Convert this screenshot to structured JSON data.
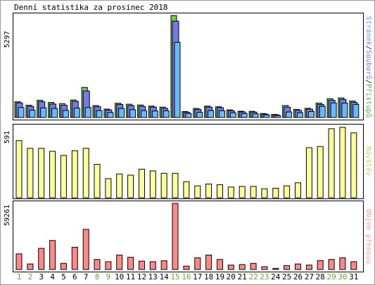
{
  "chart_data": {
    "type": "bar",
    "title": "Denní statistika za prosinec 2018",
    "days": [
      "1",
      "2",
      "3",
      "4",
      "5",
      "6",
      "7",
      "8",
      "9",
      "10",
      "11",
      "12",
      "13",
      "14",
      "15",
      "16",
      "17",
      "18",
      "19",
      "20",
      "21",
      "22",
      "23",
      "24",
      "25",
      "26",
      "27",
      "28",
      "29",
      "30",
      "31"
    ],
    "weekend_days": [
      "1",
      "2",
      "8",
      "9",
      "15",
      "16",
      "22",
      "23",
      "29",
      "30"
    ],
    "panels": [
      {
        "id": "traffic",
        "max_label": "5297",
        "ymax": 5297,
        "series_label_parts": [
          "Stránek",
          "Souborů",
          "Přístupů"
        ],
        "series_colors": [
          "#6699ee",
          "#7777ee",
          "#66aa55"
        ],
        "series": [
          {
            "name": "Přístupů",
            "color": "#77cc44",
            "values": [
              820,
              640,
              900,
              780,
              720,
              910,
              1560,
              620,
              440,
              740,
              690,
              650,
              590,
              540,
              5297,
              310,
              470,
              590,
              560,
              400,
              330,
              320,
              210,
              160,
              620,
              420,
              480,
              750,
              980,
              1020,
              860
            ]
          },
          {
            "name": "Souborů",
            "color": "#7777ee",
            "values": [
              760,
              580,
              820,
              700,
              640,
              840,
              1380,
              560,
              390,
              680,
              620,
              580,
              540,
              480,
              5000,
              270,
              420,
              540,
              510,
              350,
              290,
              280,
              180,
              140,
              540,
              370,
              430,
              680,
              900,
              940,
              790
            ]
          },
          {
            "name": "Stránek",
            "color": "#66bbff",
            "values": [
              520,
              380,
              500,
              470,
              370,
              490,
              520,
              360,
              260,
              470,
              410,
              360,
              340,
              350,
              3900,
              200,
              270,
              360,
              350,
              250,
              200,
              190,
              130,
              100,
              290,
              250,
              310,
              580,
              760,
              750,
              680
            ]
          }
        ]
      },
      {
        "id": "visits",
        "max_label": "591",
        "ymax": 591,
        "series_label_parts": [
          "Návštěv"
        ],
        "series_colors": [
          "#cccc66"
        ],
        "series": [
          {
            "name": "Návštěv",
            "color": "#ffff99",
            "values": [
              480,
              415,
              415,
              390,
              355,
              395,
              415,
              280,
              160,
              200,
              190,
              240,
              225,
              205,
              205,
              135,
              100,
              115,
              110,
              90,
              95,
              95,
              75,
              80,
              100,
              125,
              420,
              430,
              580,
              591,
              545
            ]
          }
        ]
      },
      {
        "id": "volume",
        "max_label": "59261",
        "ymax": 59261,
        "series_label_parts": [
          "Objem přenosu"
        ],
        "series_colors": [
          "#ff9999"
        ],
        "series": [
          {
            "name": "Objem přenosu",
            "color": "#ff8888",
            "values": [
              14000,
              5000,
              19000,
              26000,
              5500,
              20000,
              36000,
              9000,
              7000,
              13000,
              11000,
              7500,
              7000,
              7800,
              59261,
              3000,
              10500,
              13000,
              9000,
              4000,
              4500,
              5500,
              2500,
              1000,
              3500,
              5000,
              4000,
              8000,
              9000,
              10500,
              7000
            ]
          }
        ]
      }
    ]
  }
}
